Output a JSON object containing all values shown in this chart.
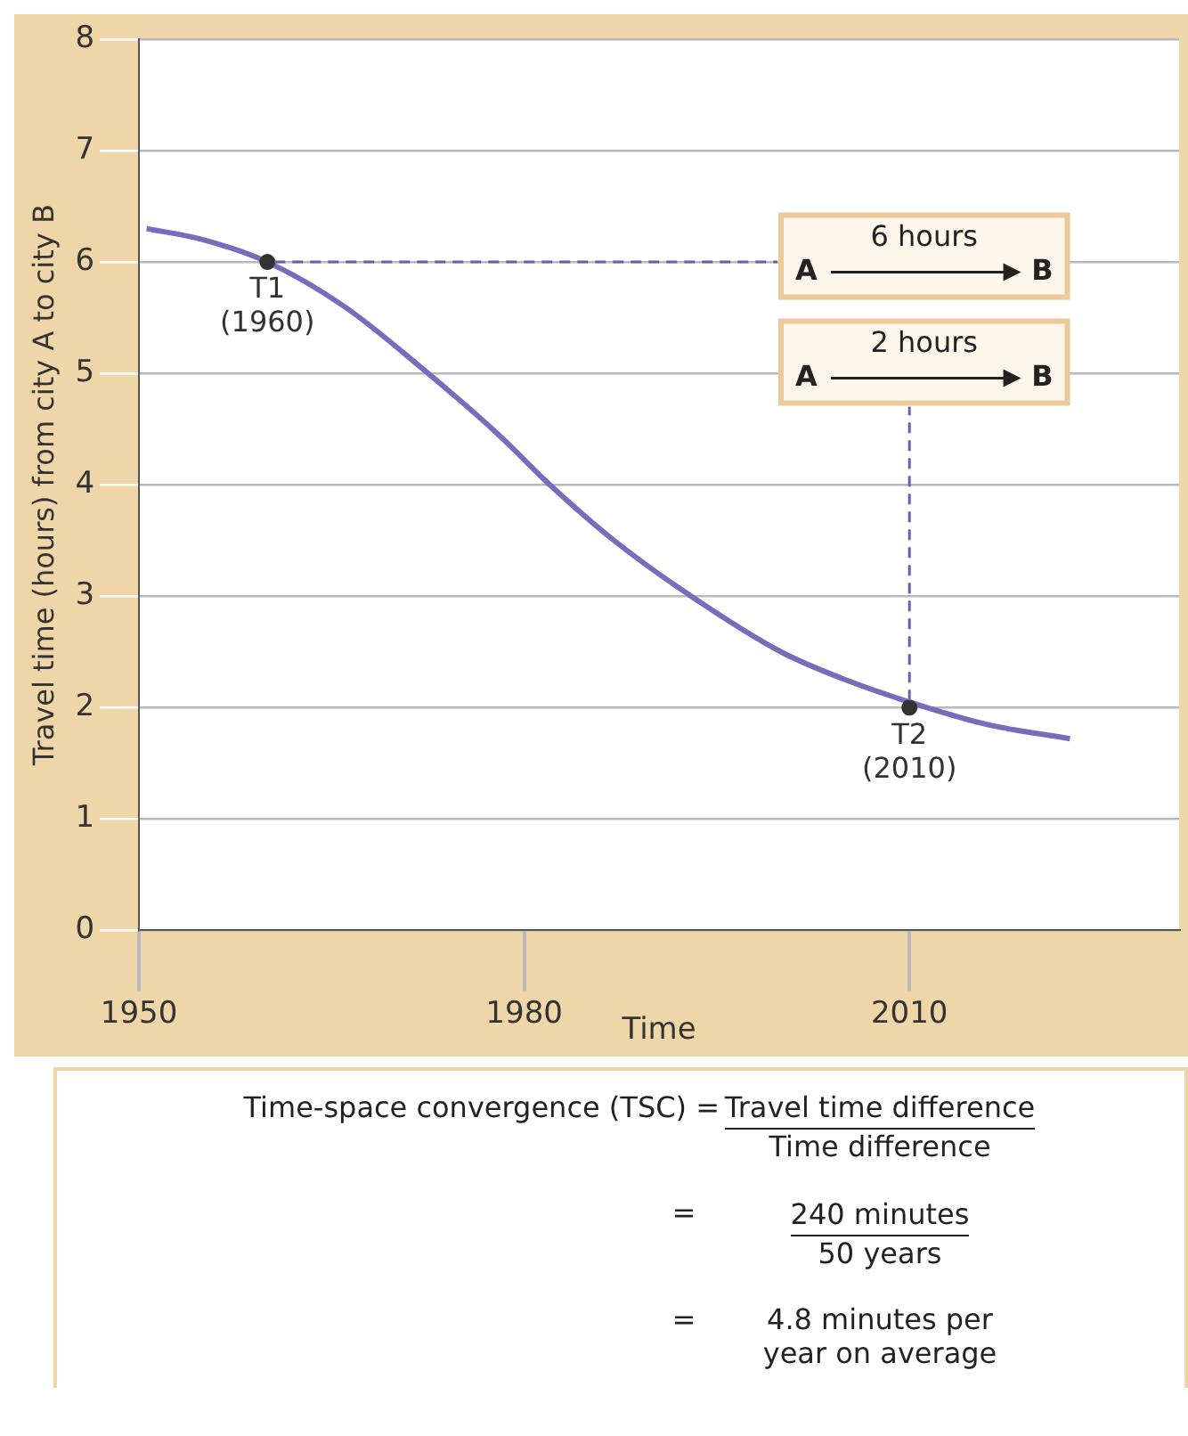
{
  "chart_data": {
    "type": "line",
    "xlabel": "Time",
    "ylabel": "Travel time (hours) from city A to city B",
    "xlim": [
      1950,
      2031
    ],
    "xticks": [
      1950,
      1980,
      2010
    ],
    "ylim": [
      0,
      8
    ],
    "yticks": [
      0,
      1,
      2,
      3,
      4,
      5,
      6,
      7,
      8
    ],
    "grid": "y",
    "legend": false,
    "marker": "none",
    "line_style": "solid",
    "series": [
      {
        "type": "line",
        "color": "#7b6bbd",
        "x": [
          1950.6,
          1955,
          1960,
          1966,
          1972,
          1978,
          1982,
          1987,
          1993,
          2000,
          2005,
          2010,
          2016,
          2022.5
        ],
        "values": [
          6.3,
          6.2,
          6.0,
          5.6,
          5.05,
          4.45,
          4.0,
          3.5,
          3.0,
          2.5,
          2.25,
          2.05,
          1.85,
          1.72
        ]
      },
      {
        "type": "scatter",
        "color": "#333333",
        "marker": "circle",
        "x": [
          1960,
          2010
        ],
        "values": [
          6,
          2
        ]
      }
    ],
    "annotations": [
      {
        "text": "T1\n(1960)",
        "x": 1960,
        "y": 6
      },
      {
        "text": "T2\n(2010)",
        "x": 2010,
        "y": 2
      },
      "A",
      "6 hours",
      "B",
      "A",
      "2 hours",
      "B",
      "Time-space convergence (TSC) =",
      "Travel time difference",
      "Time difference",
      "=",
      "240 minutes",
      "50 years",
      "=",
      "4.8 minutes per\nyear on average"
    ]
  }
}
